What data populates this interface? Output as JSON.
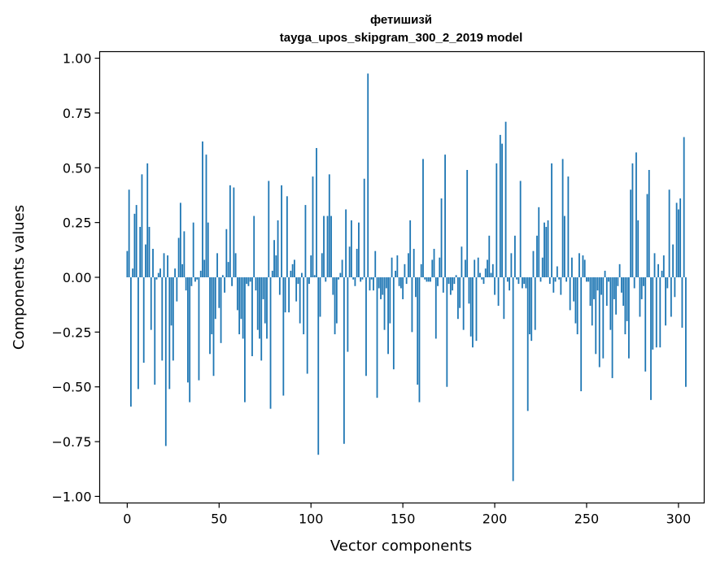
{
  "chart_data": {
    "type": "bar",
    "title": "фетишизй",
    "subtitle": "tayga_upos_skipgram_300_2_2019 model",
    "xlabel": "Vector components",
    "ylabel": "Components values",
    "xlim": [
      -15,
      314
    ],
    "ylim": [
      -1.03,
      1.03
    ],
    "xticks": [
      0,
      50,
      100,
      150,
      200,
      250,
      300
    ],
    "xtick_labels": [
      "0",
      "50",
      "100",
      "150",
      "200",
      "250",
      "300"
    ],
    "yticks": [
      1.0,
      0.75,
      0.5,
      0.25,
      0.0,
      -0.25,
      -0.5,
      -0.75,
      -1.0
    ],
    "ytick_labels": [
      "1.00",
      "0.75",
      "0.50",
      "0.25",
      "0.00",
      "−0.25",
      "−0.50",
      "−0.75",
      "−1.00"
    ],
    "grid": false,
    "bar_color": "#1f77b4",
    "values": [
      0.12,
      0.4,
      -0.59,
      0.04,
      0.29,
      0.33,
      -0.51,
      0.23,
      0.47,
      -0.39,
      0.15,
      0.52,
      0.23,
      -0.24,
      0.13,
      -0.49,
      -0.01,
      0.02,
      0.04,
      -0.38,
      0.11,
      -0.77,
      0.1,
      -0.51,
      -0.22,
      -0.38,
      0.04,
      -0.11,
      0.18,
      0.34,
      0.06,
      0.21,
      -0.06,
      -0.48,
      -0.57,
      -0.04,
      0.25,
      -0.02,
      -0.01,
      -0.47,
      0.03,
      0.62,
      0.08,
      0.56,
      0.25,
      -0.35,
      -0.26,
      -0.45,
      -0.19,
      0.11,
      -0.14,
      -0.3,
      0.01,
      -0.07,
      0.22,
      0.07,
      0.42,
      -0.04,
      0.41,
      0.11,
      -0.15,
      -0.26,
      -0.19,
      -0.28,
      -0.57,
      -0.03,
      -0.04,
      -0.02,
      -0.36,
      0.28,
      -0.06,
      -0.24,
      -0.28,
      -0.38,
      -0.1,
      -0.21,
      -0.28,
      0.44,
      -0.6,
      0.03,
      0.17,
      0.1,
      0.26,
      -0.08,
      0.42,
      -0.54,
      -0.16,
      0.37,
      -0.16,
      0.03,
      0.06,
      0.08,
      -0.11,
      -0.03,
      -0.21,
      0.02,
      -0.26,
      0.33,
      -0.44,
      -0.03,
      0.1,
      0.46,
      0.01,
      0.59,
      -0.81,
      -0.18,
      0.11,
      0.28,
      -0.02,
      0.28,
      0.47,
      0.28,
      -0.08,
      -0.26,
      -0.21,
      -0.01,
      0.02,
      0.08,
      -0.76,
      0.31,
      -0.34,
      0.14,
      0.26,
      -0.01,
      -0.04,
      0.13,
      0.25,
      -0.02,
      -0.01,
      0.45,
      -0.45,
      0.93,
      -0.06,
      -0.01,
      -0.06,
      0.12,
      -0.55,
      -0.05,
      -0.1,
      -0.08,
      -0.24,
      -0.05,
      -0.35,
      -0.21,
      0.09,
      -0.42,
      0.03,
      0.1,
      -0.04,
      -0.05,
      -0.1,
      0.06,
      -0.03,
      0.11,
      0.26,
      -0.25,
      0.13,
      -0.09,
      -0.49,
      -0.57,
      0.06,
      0.54,
      -0.01,
      -0.02,
      -0.02,
      -0.02,
      0.08,
      0.13,
      -0.28,
      -0.04,
      0.09,
      0.36,
      -0.07,
      0.56,
      -0.5,
      -0.03,
      -0.08,
      -0.06,
      -0.03,
      0.01,
      -0.19,
      -0.14,
      0.14,
      -0.24,
      0.08,
      0.49,
      -0.12,
      -0.27,
      -0.32,
      0.08,
      -0.29,
      0.09,
      0.02,
      -0.01,
      -0.03,
      0.04,
      0.08,
      0.19,
      0.02,
      0.06,
      -0.08,
      0.52,
      -0.13,
      0.65,
      0.61,
      -0.19,
      0.71,
      -0.02,
      -0.06,
      0.11,
      -0.93,
      0.19,
      -0.01,
      -0.03,
      0.44,
      -0.05,
      -0.03,
      -0.05,
      -0.61,
      -0.26,
      -0.29,
      0.12,
      -0.24,
      0.19,
      0.32,
      -0.02,
      0.09,
      0.25,
      0.23,
      0.26,
      -0.03,
      0.52,
      -0.07,
      -0.02,
      0.05,
      -0.01,
      -0.08,
      0.54,
      0.28,
      -0.02,
      0.46,
      -0.15,
      0.09,
      -0.11,
      -0.21,
      -0.26,
      0.11,
      -0.52,
      0.1,
      0.08,
      -0.02,
      -0.02,
      -0.13,
      -0.22,
      -0.1,
      -0.35,
      -0.06,
      -0.41,
      -0.08,
      -0.37,
      0.03,
      -0.13,
      -0.02,
      -0.24,
      -0.46,
      -0.1,
      -0.17,
      -0.04,
      0.06,
      -0.07,
      -0.13,
      -0.26,
      -0.2,
      -0.37,
      0.4,
      0.52,
      -0.05,
      0.57,
      0.26,
      -0.18,
      -0.1,
      -0.04,
      -0.43,
      0.38,
      0.49,
      -0.56,
      -0.33,
      0.11,
      -0.32,
      0.06,
      -0.32,
      0.03,
      0.1,
      -0.22,
      -0.05,
      0.4,
      -0.18,
      0.15,
      -0.09,
      0.34,
      0.31,
      0.36,
      -0.23,
      0.64,
      -0.5
    ]
  }
}
